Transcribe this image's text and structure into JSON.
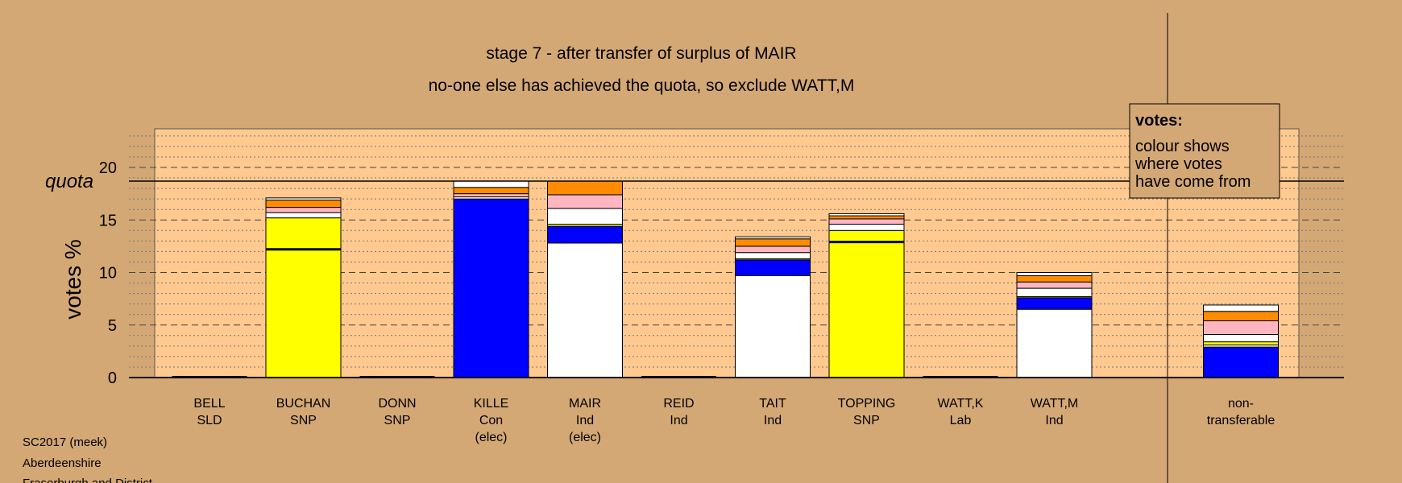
{
  "chart_data": {
    "type": "bar",
    "title": "stage 7 - after transfer of surplus of MAIR",
    "subtitle": "no-one else has achieved the quota, so exclude WATT,M",
    "ylabel": "votes %",
    "ylim": [
      0,
      23
    ],
    "yticks": [
      0,
      5,
      10,
      15,
      20
    ],
    "quota": 18.7,
    "quota_label": "quota",
    "grid": true,
    "legend": {
      "position": "top-right",
      "title": "votes:",
      "lines": [
        "colour shows",
        "where votes",
        "have come from"
      ]
    },
    "candidates": [
      {
        "name": "BELL",
        "party": "SLD",
        "note": "",
        "segments": []
      },
      {
        "name": "BUCHAN",
        "party": "SNP",
        "note": "",
        "first_pref_mark": 12.2,
        "segments": [
          {
            "color": "#FFFF00",
            "value": 15.2
          },
          {
            "color": "#FFFFFF",
            "value": 0.5
          },
          {
            "color": "#FFB6C1",
            "value": 0.5
          },
          {
            "color": "#FF8C00",
            "value": 0.7
          },
          {
            "color": "#FFFFFF",
            "value": 0.2
          }
        ]
      },
      {
        "name": "DONN",
        "party": "SNP",
        "note": "",
        "segments": []
      },
      {
        "name": "KILLE",
        "party": "Con",
        "note": "(elec)",
        "segments": [
          {
            "color": "#0000FF",
            "value": 17.0
          },
          {
            "color": "#FFFFFF",
            "value": 0.2
          },
          {
            "color": "#FFB6C1",
            "value": 0.3
          },
          {
            "color": "#FF8C00",
            "value": 0.6
          },
          {
            "color": "#FFFFFF",
            "value": 0.6
          }
        ]
      },
      {
        "name": "MAIR",
        "party": "Ind",
        "note": "(elec)",
        "segments": [
          {
            "color": "#FFFFFF",
            "value": 12.8
          },
          {
            "color": "#0000FF",
            "value": 1.6
          },
          {
            "color": "#FFFF00",
            "value": 0.2
          },
          {
            "color": "#FFFFFF",
            "value": 1.5
          },
          {
            "color": "#FFB6C1",
            "value": 1.3
          },
          {
            "color": "#FF8C00",
            "value": 1.3
          }
        ]
      },
      {
        "name": "REID",
        "party": "Ind",
        "note": "",
        "segments": []
      },
      {
        "name": "TAIT",
        "party": "Ind",
        "note": "",
        "segments": [
          {
            "color": "#FFFFFF",
            "value": 9.7
          },
          {
            "color": "#0000FF",
            "value": 1.5
          },
          {
            "color": "#FFFF00",
            "value": 0.1
          },
          {
            "color": "#FFFFFF",
            "value": 0.6
          },
          {
            "color": "#FFB6C1",
            "value": 0.6
          },
          {
            "color": "#FF8C00",
            "value": 0.7
          },
          {
            "color": "#FFFFFF",
            "value": 0.2
          }
        ]
      },
      {
        "name": "TOPPING",
        "party": "SNP",
        "note": "",
        "first_pref_mark": 12.9,
        "segments": [
          {
            "color": "#FFFF00",
            "value": 14.0
          },
          {
            "color": "#FFFFFF",
            "value": 0.6
          },
          {
            "color": "#FFB6C1",
            "value": 0.5
          },
          {
            "color": "#FF8C00",
            "value": 0.3
          },
          {
            "color": "#FFFFFF",
            "value": 0.2
          }
        ]
      },
      {
        "name": "WATT,K",
        "party": "Lab",
        "note": "",
        "segments": []
      },
      {
        "name": "WATT,M",
        "party": "Ind",
        "note": "",
        "segments": [
          {
            "color": "#FFFFFF",
            "value": 6.5
          },
          {
            "color": "#0000FF",
            "value": 1.1
          },
          {
            "color": "#FFFF00",
            "value": 0.1
          },
          {
            "color": "#FFFFFF",
            "value": 0.8
          },
          {
            "color": "#FFB6C1",
            "value": 0.6
          },
          {
            "color": "#FF8C00",
            "value": 0.6
          },
          {
            "color": "#FFFFFF",
            "value": 0.3
          }
        ]
      }
    ],
    "nontransferable": {
      "lines": [
        "non-",
        "transferable"
      ],
      "segments": [
        {
          "color": "#0000FF",
          "value": 2.9
        },
        {
          "color": "#FFFFFF",
          "value": 0.2
        },
        {
          "color": "#FFFF00",
          "value": 0.3
        },
        {
          "color": "#FFFFFF",
          "value": 0.7
        },
        {
          "color": "#FFB6C1",
          "value": 1.3
        },
        {
          "color": "#FF8C00",
          "value": 0.9
        },
        {
          "color": "#FFFFFF",
          "value": 0.6
        }
      ]
    }
  },
  "footer": [
    "SC2017 (meek)",
    "Aberdeenshire",
    "Fraserburgh and District"
  ],
  "colors": {
    "background": "#D4A875",
    "plot_fill": "#FFC98F"
  }
}
